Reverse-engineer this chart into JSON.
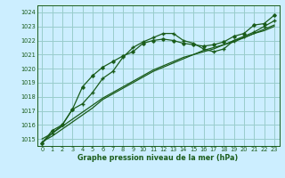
{
  "title": "Graphe pression niveau de la mer (hPa)",
  "bg_color": "#cceeff",
  "grid_color": "#99cccc",
  "line_color": "#1a5c1a",
  "xlim": [
    -0.5,
    23.5
  ],
  "ylim": [
    1014.5,
    1024.5
  ],
  "yticks": [
    1015,
    1016,
    1017,
    1018,
    1019,
    1020,
    1021,
    1022,
    1023,
    1024
  ],
  "xticks": [
    0,
    1,
    2,
    3,
    4,
    5,
    6,
    7,
    8,
    9,
    10,
    11,
    12,
    13,
    14,
    15,
    16,
    17,
    18,
    19,
    20,
    21,
    22,
    23
  ],
  "series_marker1_x": [
    0,
    1,
    2,
    3,
    4,
    5,
    6,
    7,
    8,
    9,
    10,
    11,
    12,
    13,
    14,
    15,
    16,
    17,
    18,
    19,
    20,
    21,
    22,
    23
  ],
  "series_marker1_y": [
    1014.7,
    1015.6,
    1016.0,
    1017.1,
    1018.7,
    1019.5,
    1020.1,
    1020.5,
    1020.9,
    1021.2,
    1021.8,
    1022.0,
    1022.1,
    1022.0,
    1021.8,
    1021.7,
    1021.6,
    1021.7,
    1021.9,
    1022.3,
    1022.5,
    1023.1,
    1023.2,
    1023.8
  ],
  "series_marker2_x": [
    0,
    1,
    2,
    3,
    4,
    5,
    6,
    7,
    8,
    9,
    10,
    11,
    12,
    13,
    14,
    15,
    16,
    17,
    18,
    19,
    20,
    21,
    22,
    23
  ],
  "series_marker2_y": [
    1014.7,
    1015.4,
    1016.0,
    1017.1,
    1017.5,
    1018.3,
    1019.3,
    1019.8,
    1020.8,
    1021.5,
    1021.9,
    1022.2,
    1022.5,
    1022.5,
    1022.0,
    1021.8,
    1021.4,
    1021.2,
    1021.4,
    1022.0,
    1022.3,
    1022.6,
    1023.0,
    1023.4
  ],
  "series_linear1_x": [
    0,
    1,
    2,
    3,
    4,
    5,
    6,
    7,
    8,
    9,
    10,
    11,
    12,
    13,
    14,
    15,
    16,
    17,
    18,
    19,
    20,
    21,
    22,
    23
  ],
  "series_linear1_y": [
    1015.0,
    1015.4,
    1015.9,
    1016.4,
    1016.9,
    1017.4,
    1017.9,
    1018.3,
    1018.7,
    1019.1,
    1019.5,
    1019.9,
    1020.2,
    1020.5,
    1020.8,
    1021.0,
    1021.3,
    1021.5,
    1021.7,
    1022.0,
    1022.2,
    1022.5,
    1022.8,
    1023.1
  ],
  "series_linear2_x": [
    0,
    1,
    2,
    3,
    4,
    5,
    6,
    7,
    8,
    9,
    10,
    11,
    12,
    13,
    14,
    15,
    16,
    17,
    18,
    19,
    20,
    21,
    22,
    23
  ],
  "series_linear2_y": [
    1014.8,
    1015.2,
    1015.7,
    1016.2,
    1016.7,
    1017.2,
    1017.8,
    1018.2,
    1018.6,
    1019.0,
    1019.4,
    1019.8,
    1020.1,
    1020.4,
    1020.7,
    1021.0,
    1021.2,
    1021.4,
    1021.7,
    1021.9,
    1022.2,
    1022.5,
    1022.7,
    1023.0
  ]
}
